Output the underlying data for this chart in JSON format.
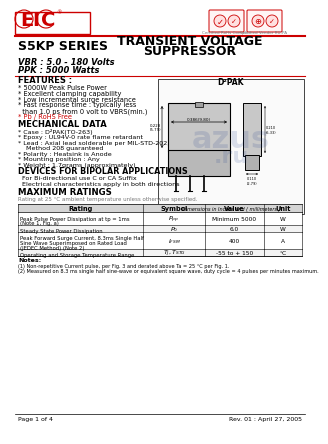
{
  "bg_color": "#ffffff",
  "red_color": "#cc0000",
  "black": "#000000",
  "gray": "#777777",
  "title_series": "S5KP SERIES",
  "title_main1": "TRANSIENT VOLTAGE",
  "title_main2": "SUPPRESSOR",
  "vbr_line": "VBR : 5.0 - 180 Volts",
  "ppk_line": "PPK : 5000 Watts",
  "features_title": "FEATURES :",
  "features": [
    "* 5000W Peak Pulse Power",
    "* Excellent clamping capability",
    "* Low incremental surge resistance",
    "* Fast response time : typically less",
    "  than 1.0 ps from 0 volt to VBRS(min.)",
    "* Pb / RoHS Free"
  ],
  "mech_title": "MECHANICAL DATA",
  "mech_items": [
    "* Case : D²PAK(TO-263)",
    "* Epoxy : UL94V-0 rate flame retardant",
    "* Lead : Axial lead solderable per MIL-STD-202,",
    "    Method 208 guaranteed",
    "* Polarity : Heatsink is Anode",
    "* Mounting position : Any",
    "* Weight : 1.7grams (approximately)"
  ],
  "bipolar_title": "DEVICES FOR BIPOLAR APPLICATIONS",
  "bipolar_items": [
    "  For Bi-directional use C or CA Suffix",
    "  Electrical characteristics apply in both directions"
  ],
  "max_ratings_title": "MAXIMUM RATINGS",
  "max_ratings_sub": "Rating at 25 °C ambient temperature unless otherwise specified.",
  "table_headers": [
    "Rating",
    "Symbol",
    "Value",
    "Unit"
  ],
  "table_rows": [
    [
      "Peak Pulse Power Dissipation at tp = 1ms\n(Note 1, Fig. a)",
      "P_pp",
      "Minimum 5000",
      "W"
    ],
    [
      "Steady State Power Dissipation",
      "P_0",
      "6.0",
      "W"
    ],
    [
      "Peak Forward Surge Current, 8.3ms Single Half\nSine Wave Superimposed on Rated Load\n(JEDEC Method) (Note 2)",
      "I_FSM",
      "400",
      "A"
    ],
    [
      "Operating and Storage Temperature Range",
      "T_J_T_STG",
      "-55 to + 150",
      "°C"
    ]
  ],
  "notes_title": "Notes:",
  "note1": "(1) Non-repetitive Current pulse, per Fig. 3 and derated above Ta = 25 °C per Fig. 1.",
  "note2": "(2) Measured on 8.3 ms single half sine-wave or equivalent square wave, duty cycle = 4 pulses per minutes maximum.",
  "page_info": "Page 1 of 4",
  "rev_info": "Rev. 01 : April 27, 2005",
  "package_name": "D²PAK",
  "blue_wm": "#1a3a8a",
  "cert_label1": "Certified RoHs Compli...",
  "cert_label2": "Certified Vendor RU-PA"
}
